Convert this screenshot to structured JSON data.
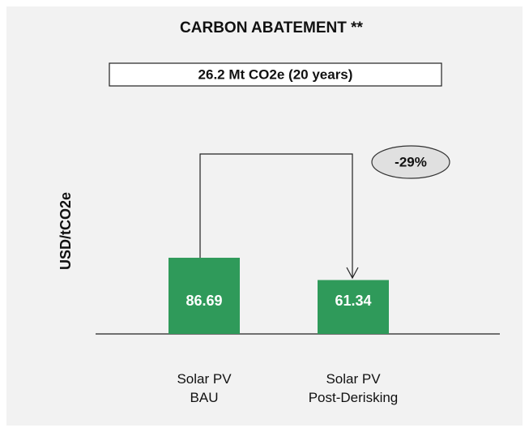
{
  "chart_data": {
    "type": "bar",
    "title": "CARBON ABATEMENT **",
    "subtitle": "26.2 Mt CO2e (20 years)",
    "y_label": "USD/tCO2e",
    "categories": [
      "Solar PV\nBAU",
      "Solar PV\nPost-Derisking"
    ],
    "values": [
      86.69,
      61.34
    ],
    "color": "#2f9a5a",
    "annotations": [
      "-29%"
    ]
  }
}
